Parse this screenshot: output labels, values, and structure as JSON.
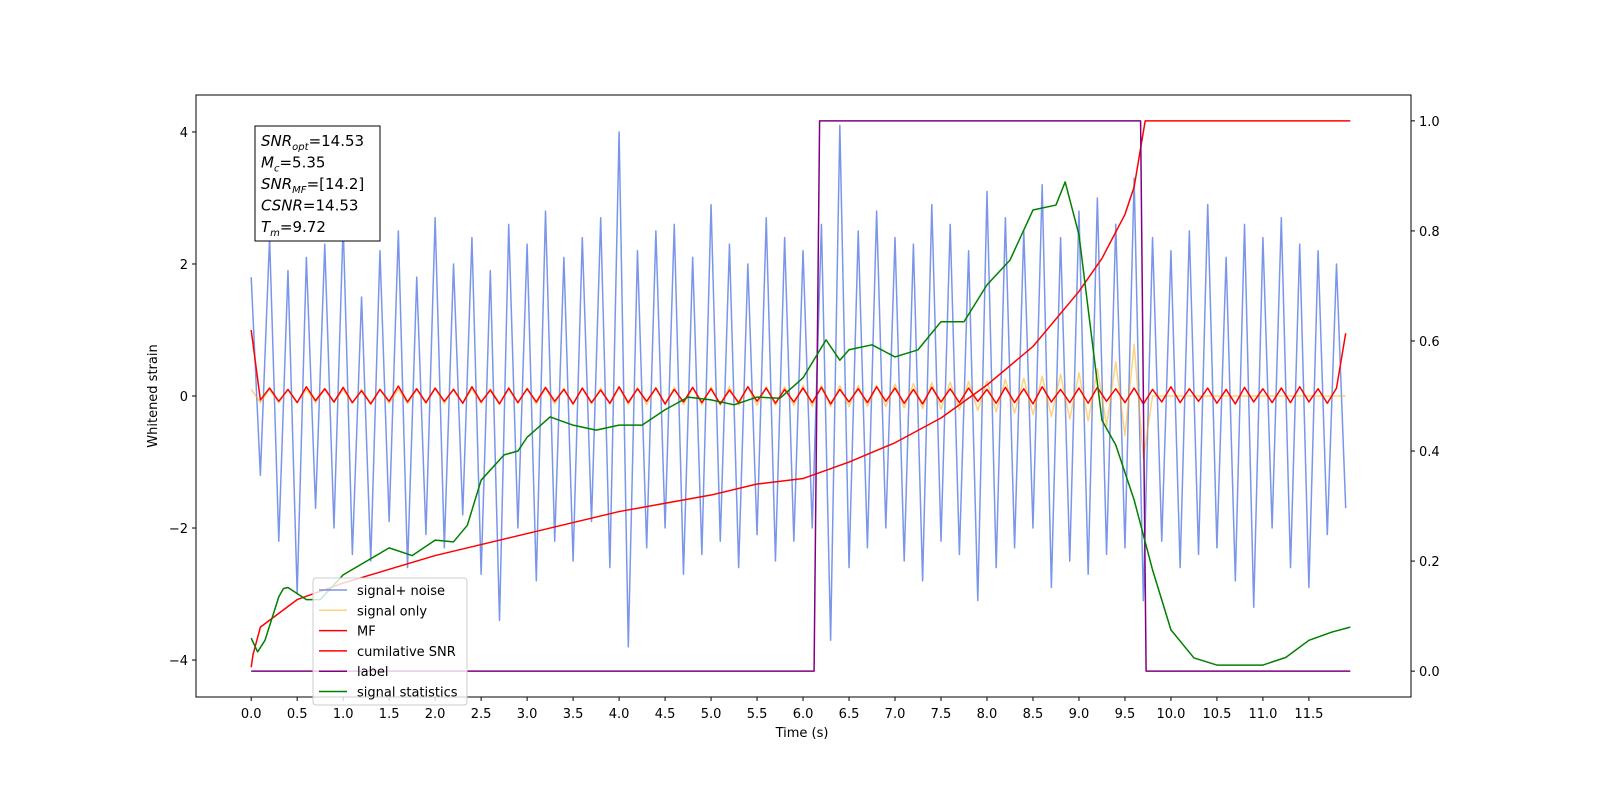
{
  "chart_data": {
    "type": "line",
    "x_label": "Time (s)",
    "y_label": "Whitened strain",
    "xlim": [
      -0.6,
      12.61
    ],
    "ylim": [
      -4.56,
      4.56
    ],
    "y2lim": [
      -0.047,
      1.047
    ],
    "xticks": [
      {
        "value": 0,
        "label": "0.0"
      },
      0.5,
      {
        "value": 1,
        "label": "1.0"
      },
      1.5,
      {
        "value": 2,
        "label": "2.0"
      },
      2.5,
      {
        "value": 3,
        "label": "3.0"
      },
      3.5,
      {
        "value": 4,
        "label": "4.0"
      },
      4.5,
      {
        "value": 5,
        "label": "5.0"
      },
      5.5,
      {
        "value": 6,
        "label": "6.0"
      },
      6.5,
      {
        "value": 7,
        "label": "7.0"
      },
      7.5,
      {
        "value": 8,
        "label": "8.0"
      },
      8.5,
      {
        "value": 9,
        "label": "9.0"
      },
      9.5,
      {
        "value": 10,
        "label": "10.0"
      },
      10.5,
      {
        "value": 11,
        "label": "11.0"
      },
      11.5
    ],
    "yticks": [
      {
        "value": -4,
        "label": "−4"
      },
      {
        "value": -2,
        "label": "−2"
      },
      0,
      2,
      4
    ],
    "y2ticks": [
      {
        "value": 0,
        "label": "0.0"
      },
      0.2,
      0.4,
      0.6,
      0.8,
      {
        "value": 1,
        "label": "1.0"
      }
    ],
    "legend": "lower left",
    "stats_box": [
      {
        "symbol": "SNR",
        "subscript": "opt",
        "text": "=14.53"
      },
      {
        "symbol": "M",
        "subscript": "c",
        "text": "=5.35"
      },
      {
        "symbol": "SNR",
        "subscript": "MF",
        "text": "=[14.2]"
      },
      {
        "symbol": "CSNR",
        "text": "=14.53"
      },
      {
        "symbol": "T",
        "subscript": "m",
        "text": "=9.72"
      }
    ],
    "x": [
      0,
      0.1,
      0.2,
      0.3,
      0.4,
      0.5,
      0.6,
      0.7,
      0.8,
      0.9,
      1,
      1.1,
      1.2,
      1.3,
      1.4,
      1.5,
      1.6,
      1.7,
      1.8,
      1.9,
      2,
      2.1,
      2.2,
      2.3,
      2.4,
      2.5,
      2.6,
      2.7,
      2.8,
      2.9,
      3,
      3.1,
      3.2,
      3.3,
      3.4,
      3.5,
      3.6,
      3.7,
      3.8,
      3.9,
      4,
      4.1,
      4.2,
      4.3,
      4.4,
      4.5,
      4.6,
      4.7,
      4.8,
      4.9,
      5,
      5.1,
      5.2,
      5.3,
      5.4,
      5.5,
      5.6,
      5.7,
      5.8,
      5.9,
      6,
      6.1,
      6.2,
      6.3,
      6.4,
      6.5,
      6.6,
      6.7,
      6.8,
      6.9,
      7,
      7.1,
      7.2,
      7.3,
      7.4,
      7.5,
      7.6,
      7.7,
      7.8,
      7.9,
      8,
      8.1,
      8.2,
      8.3,
      8.4,
      8.5,
      8.6,
      8.7,
      8.8,
      8.9,
      9,
      9.1,
      9.2,
      9.3,
      9.4,
      9.5,
      9.6,
      9.7,
      9.8,
      9.9,
      10,
      10.1,
      10.2,
      10.3,
      10.4,
      10.5,
      10.6,
      10.7,
      10.8,
      10.9,
      11,
      11.1,
      11.2,
      11.3,
      11.4,
      11.5,
      11.6,
      11.7,
      11.8,
      11.9
    ],
    "series": [
      {
        "name": "signal+ noise",
        "color": "#4169e1",
        "alpha": 0.7,
        "values": [
          1.8,
          -1.2,
          2.4,
          -2.2,
          1.9,
          -3.0,
          2.1,
          -1.7,
          2.3,
          -2.0,
          2.6,
          -2.4,
          1.5,
          -2.5,
          2.2,
          -1.9,
          2.5,
          -2.6,
          1.8,
          -2.1,
          2.7,
          -2.3,
          2.0,
          -1.8,
          2.4,
          -2.7,
          1.9,
          -3.4,
          2.6,
          -2.0,
          2.3,
          -2.8,
          2.8,
          -2.2,
          2.1,
          -2.5,
          2.4,
          -1.9,
          2.7,
          -2.6,
          4.0,
          -3.8,
          2.2,
          -2.3,
          2.5,
          -2.0,
          2.6,
          -2.7,
          2.1,
          -2.4,
          2.9,
          -2.2,
          2.3,
          -2.6,
          2.0,
          -2.1,
          2.7,
          -2.5,
          2.4,
          -2.2,
          2.2,
          -2.0,
          2.6,
          -3.7,
          4.1,
          -2.6,
          2.5,
          -2.3,
          2.8,
          -2.0,
          2.4,
          -2.5,
          2.3,
          -2.8,
          2.9,
          -2.2,
          2.6,
          -2.4,
          2.2,
          -3.1,
          3.1,
          -2.6,
          2.7,
          -2.3,
          2.5,
          -2.0,
          3.2,
          -2.9,
          2.4,
          -2.5,
          2.8,
          -2.7,
          3.0,
          -2.4,
          2.6,
          -2.3,
          3.3,
          -3.1,
          2.4,
          -2.2,
          2.2,
          -2.6,
          2.5,
          -2.4,
          2.9,
          -2.3,
          2.1,
          -2.8,
          2.6,
          -3.2,
          2.4,
          -2.0,
          2.7,
          -2.6,
          2.3,
          -2.9,
          2.2,
          -2.1,
          2.0,
          -1.7
        ]
      },
      {
        "name": "signal only",
        "color": "#ffa500",
        "alpha": 0.5,
        "values": [
          0.1,
          -0.1,
          0.1,
          -0.1,
          0.1,
          -0.1,
          0.1,
          -0.1,
          0.1,
          -0.1,
          0.1,
          -0.11,
          0.1,
          -0.11,
          0.1,
          -0.11,
          0.1,
          -0.11,
          0.1,
          -0.11,
          0.11,
          -0.11,
          0.11,
          -0.11,
          0.11,
          -0.11,
          0.11,
          -0.11,
          0.11,
          -0.11,
          0.12,
          -0.12,
          0.12,
          -0.12,
          0.12,
          -0.12,
          0.12,
          -0.12,
          0.12,
          -0.12,
          0.13,
          -0.13,
          0.13,
          -0.13,
          0.13,
          -0.13,
          0.13,
          -0.13,
          0.13,
          -0.13,
          0.14,
          -0.14,
          0.14,
          -0.14,
          0.14,
          -0.14,
          0.14,
          -0.14,
          0.14,
          -0.14,
          0.16,
          -0.16,
          0.16,
          -0.16,
          0.16,
          -0.16,
          0.16,
          -0.16,
          0.16,
          -0.16,
          0.18,
          -0.18,
          0.19,
          -0.19,
          0.2,
          -0.2,
          0.21,
          -0.21,
          0.22,
          -0.22,
          0.23,
          -0.24,
          0.25,
          -0.26,
          0.27,
          -0.28,
          0.3,
          -0.31,
          0.33,
          -0.35,
          0.35,
          -0.38,
          0.41,
          -0.45,
          0.52,
          -0.6,
          0.78,
          -0.95,
          0,
          0,
          0,
          0,
          0,
          0,
          0,
          0,
          0,
          0,
          0,
          0,
          0,
          0,
          0,
          0,
          0,
          0,
          0,
          0,
          0,
          0
        ]
      },
      {
        "name": "MF",
        "color": "#ff0000",
        "alpha": 1,
        "values": [
          1.0,
          -0.06,
          0.12,
          -0.08,
          0.1,
          -0.1,
          0.14,
          -0.07,
          0.11,
          -0.09,
          0.13,
          -0.1,
          0.08,
          -0.12,
          0.1,
          -0.08,
          0.15,
          -0.09,
          0.11,
          -0.1,
          0.12,
          -0.08,
          0.1,
          -0.11,
          0.14,
          -0.09,
          0.09,
          -0.12,
          0.12,
          -0.1,
          0.11,
          -0.09,
          0.13,
          -0.08,
          0.1,
          -0.12,
          0.12,
          -0.1,
          0.09,
          -0.11,
          0.14,
          -0.1,
          0.11,
          -0.08,
          0.12,
          -0.12,
          0.1,
          -0.09,
          0.13,
          -0.1,
          0.11,
          -0.12,
          0.09,
          -0.1,
          0.14,
          -0.08,
          0.12,
          -0.11,
          0.1,
          -0.09,
          0.12,
          -0.1,
          0.13,
          -0.12,
          0.1,
          -0.09,
          0.11,
          -0.1,
          0.14,
          -0.08,
          0.12,
          -0.11,
          0.1,
          -0.12,
          0.13,
          -0.09,
          0.11,
          -0.1,
          0.12,
          -0.08,
          0.1,
          -0.11,
          0.13,
          -0.1,
          0.11,
          -0.12,
          0.14,
          -0.09,
          0.1,
          -0.1,
          0.12,
          -0.11,
          0.13,
          -0.08,
          0.11,
          -0.1,
          0.12,
          -0.12,
          0.1,
          -0.09,
          0.14,
          -0.1,
          0.11,
          -0.08,
          0.12,
          -0.11,
          0.1,
          -0.12,
          0.13,
          -0.09,
          0.11,
          -0.1,
          0.12,
          -0.1,
          0.14,
          -0.09,
          0.11,
          -0.11,
          0.12,
          0.95
        ]
      },
      {
        "name": "cumilative SNR",
        "color": "#ff0000",
        "alpha": 1,
        "axis": "y2",
        "x": [
          0,
          0.02,
          0.1,
          0.5,
          1,
          1.5,
          2,
          2.5,
          3,
          3.5,
          4,
          4.5,
          5,
          5.5,
          6,
          6.5,
          7,
          7.5,
          8,
          8.5,
          9,
          9.25,
          9.5,
          9.6,
          9.72,
          9.75,
          11.95
        ],
        "values": [
          0.007,
          0.03,
          0.08,
          0.13,
          0.16,
          0.185,
          0.21,
          0.23,
          0.25,
          0.27,
          0.29,
          0.305,
          0.32,
          0.34,
          0.35,
          0.38,
          0.415,
          0.46,
          0.52,
          0.59,
          0.69,
          0.75,
          0.83,
          0.88,
          1.0,
          1.0,
          1.0
        ]
      },
      {
        "name": "label",
        "color": "#800080",
        "alpha": 1,
        "axis": "y2",
        "x": [
          0,
          6.12,
          6.18,
          9.67,
          9.73,
          11.95
        ],
        "values": [
          0,
          0,
          1,
          1,
          0,
          0
        ]
      },
      {
        "name": "signal statistics",
        "color": "#008000",
        "alpha": 1,
        "axis": "y2",
        "x": [
          0,
          0.07,
          0.15,
          0.3,
          0.35,
          0.4,
          0.6,
          0.75,
          1,
          1.5,
          1.75,
          2,
          2.2,
          2.35,
          2.5,
          2.75,
          2.9,
          3,
          3.25,
          3.5,
          3.75,
          4,
          4.25,
          4.5,
          4.75,
          5,
          5.25,
          5.5,
          5.75,
          6,
          6.25,
          6.4,
          6.5,
          6.75,
          7,
          7.25,
          7.5,
          7.75,
          8,
          8.25,
          8.5,
          8.75,
          8.85,
          9,
          9.25,
          9.4,
          9.6,
          9.8,
          10,
          10.25,
          10.5,
          11,
          11.25,
          11.5,
          11.75,
          11.95
        ],
        "values": [
          0.06,
          0.035,
          0.056,
          0.135,
          0.15,
          0.152,
          0.13,
          0.13,
          0.175,
          0.224,
          0.21,
          0.238,
          0.235,
          0.265,
          0.347,
          0.393,
          0.4,
          0.425,
          0.462,
          0.447,
          0.438,
          0.447,
          0.447,
          0.475,
          0.498,
          0.493,
          0.484,
          0.498,
          0.496,
          0.533,
          0.602,
          0.565,
          0.584,
          0.593,
          0.571,
          0.584,
          0.635,
          0.635,
          0.702,
          0.747,
          0.838,
          0.847,
          0.889,
          0.793,
          0.456,
          0.411,
          0.311,
          0.184,
          0.075,
          0.024,
          0.011,
          0.011,
          0.025,
          0.056,
          0.071,
          0.08
        ]
      }
    ]
  }
}
